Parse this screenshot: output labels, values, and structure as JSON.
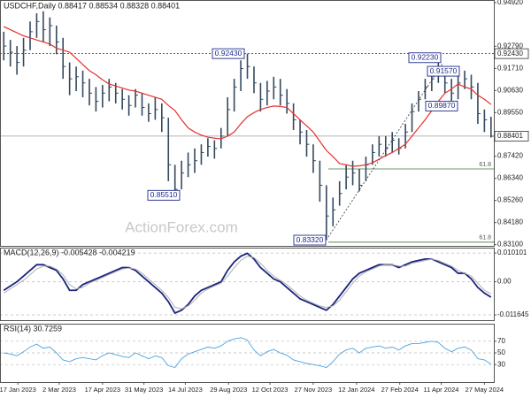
{
  "chart_data": [
    {
      "type": "ohlc",
      "title": "USDCHF,Daily  0.88417 0.88534 0.88328 0.88401",
      "watermark": "ActionForex.com",
      "xlim": [
        "2022-12-29",
        "2024-06-06"
      ],
      "ylim": [
        0.8304,
        0.9505
      ],
      "yticks": [
        {
          "value": 0.9492,
          "label": "0.94920"
        },
        {
          "value": 0.9279,
          "label": "0.92790"
        },
        {
          "value": 0.9171,
          "label": "0.91710"
        },
        {
          "value": 0.9063,
          "label": "0.90630"
        },
        {
          "value": 0.8955,
          "label": "0.89550"
        },
        {
          "value": 0.8742,
          "label": "0.87420"
        },
        {
          "value": 0.8634,
          "label": "0.86340"
        },
        {
          "value": 0.8526,
          "label": "0.85260"
        },
        {
          "value": 0.8418,
          "label": "0.84180"
        },
        {
          "value": 0.831,
          "label": "0.83100"
        }
      ],
      "x": [
        "2023-01-02",
        "2023-01-09",
        "2023-01-16",
        "2023-01-23",
        "2023-01-30",
        "2023-02-06",
        "2023-02-13",
        "2023-02-20",
        "2023-02-27",
        "2023-03-06",
        "2023-03-13",
        "2023-03-20",
        "2023-03-27",
        "2023-04-03",
        "2023-04-10",
        "2023-04-17",
        "2023-04-24",
        "2023-05-01",
        "2023-05-08",
        "2023-05-15",
        "2023-05-22",
        "2023-05-29",
        "2023-06-05",
        "2023-06-12",
        "2023-06-19",
        "2023-06-26",
        "2023-07-03",
        "2023-07-10",
        "2023-07-17",
        "2023-07-24",
        "2023-07-31",
        "2023-08-07",
        "2023-08-14",
        "2023-08-21",
        "2023-08-28",
        "2023-09-04",
        "2023-09-11",
        "2023-09-18",
        "2023-09-25",
        "2023-10-02",
        "2023-10-09",
        "2023-10-16",
        "2023-10-23",
        "2023-10-30",
        "2023-11-06",
        "2023-11-13",
        "2023-11-20",
        "2023-11-27",
        "2023-12-04",
        "2023-12-11",
        "2023-12-18",
        "2023-12-25",
        "2024-01-01",
        "2024-01-08",
        "2024-01-15",
        "2024-01-22",
        "2024-01-29",
        "2024-02-05",
        "2024-02-12",
        "2024-02-19",
        "2024-02-26",
        "2024-03-04",
        "2024-03-11",
        "2024-03-18",
        "2024-03-25",
        "2024-04-01",
        "2024-04-08",
        "2024-04-15",
        "2024-04-22",
        "2024-04-29",
        "2024-05-06",
        "2024-05-13",
        "2024-05-20",
        "2024-05-27",
        "2024-06-03"
      ],
      "high": [
        0.935,
        0.931,
        0.928,
        0.932,
        0.94,
        0.944,
        0.945,
        0.942,
        0.938,
        0.932,
        0.92,
        0.918,
        0.916,
        0.912,
        0.908,
        0.909,
        0.912,
        0.91,
        0.907,
        0.904,
        0.907,
        0.905,
        0.9,
        0.903,
        0.9,
        0.893,
        0.87,
        0.872,
        0.876,
        0.878,
        0.88,
        0.883,
        0.882,
        0.888,
        0.903,
        0.912,
        0.921,
        0.9243,
        0.918,
        0.91,
        0.911,
        0.913,
        0.912,
        0.907,
        0.9,
        0.892,
        0.887,
        0.88,
        0.872,
        0.86,
        0.854,
        0.862,
        0.87,
        0.872,
        0.868,
        0.874,
        0.88,
        0.884,
        0.884,
        0.886,
        0.883,
        0.89,
        0.9,
        0.906,
        0.912,
        0.916,
        0.9223,
        0.917,
        0.912,
        0.914,
        0.916,
        0.914,
        0.91,
        0.897,
        0.8935
      ],
      "low": [
        0.921,
        0.918,
        0.914,
        0.918,
        0.926,
        0.932,
        0.93,
        0.928,
        0.924,
        0.912,
        0.904,
        0.906,
        0.903,
        0.899,
        0.896,
        0.898,
        0.901,
        0.9,
        0.897,
        0.894,
        0.898,
        0.894,
        0.891,
        0.892,
        0.886,
        0.862,
        0.8551,
        0.858,
        0.864,
        0.866,
        0.87,
        0.874,
        0.873,
        0.878,
        0.884,
        0.896,
        0.906,
        0.912,
        0.905,
        0.896,
        0.899,
        0.902,
        0.899,
        0.895,
        0.887,
        0.88,
        0.874,
        0.866,
        0.852,
        0.8332,
        0.84,
        0.85,
        0.858,
        0.86,
        0.857,
        0.862,
        0.87,
        0.874,
        0.874,
        0.876,
        0.875,
        0.878,
        0.886,
        0.896,
        0.902,
        0.906,
        0.91,
        0.905,
        0.8987,
        0.902,
        0.907,
        0.902,
        0.89,
        0.886,
        0.8833
      ],
      "close": [
        0.928,
        0.925,
        0.92,
        0.926,
        0.935,
        0.94,
        0.936,
        0.938,
        0.93,
        0.918,
        0.912,
        0.913,
        0.91,
        0.905,
        0.901,
        0.905,
        0.908,
        0.905,
        0.902,
        0.899,
        0.904,
        0.898,
        0.895,
        0.897,
        0.893,
        0.87,
        0.858,
        0.866,
        0.87,
        0.872,
        0.876,
        0.879,
        0.878,
        0.884,
        0.897,
        0.908,
        0.917,
        0.918,
        0.91,
        0.902,
        0.906,
        0.908,
        0.904,
        0.9,
        0.892,
        0.886,
        0.88,
        0.872,
        0.86,
        0.845,
        0.848,
        0.856,
        0.864,
        0.866,
        0.86,
        0.87,
        0.876,
        0.88,
        0.878,
        0.882,
        0.878,
        0.886,
        0.896,
        0.902,
        0.908,
        0.912,
        0.915,
        0.91,
        0.905,
        0.91,
        0.912,
        0.908,
        0.895,
        0.892,
        0.88401
      ],
      "color": "#34495e",
      "series": [
        {
          "color": "#e53030",
          "values": [
            0.9375,
            0.936,
            0.9345,
            0.933,
            0.932,
            0.931,
            0.93,
            0.929,
            0.927,
            0.926,
            0.925,
            0.922,
            0.919,
            0.916,
            0.914,
            0.9115,
            0.9095,
            0.9085,
            0.9075,
            0.9065,
            0.906,
            0.905,
            0.904,
            0.903,
            0.902,
            0.899,
            0.8965,
            0.892,
            0.888,
            0.886,
            0.8845,
            0.8835,
            0.883,
            0.8827,
            0.884,
            0.886,
            0.89,
            0.8935,
            0.8955,
            0.897,
            0.898,
            0.8987,
            0.8985,
            0.898,
            0.895,
            0.892,
            0.889,
            0.886,
            0.8815,
            0.877,
            0.874,
            0.8706,
            0.87,
            0.8693,
            0.8695,
            0.87,
            0.871,
            0.8727,
            0.8745,
            0.876,
            0.878,
            0.88,
            0.884,
            0.888,
            0.892,
            0.8965,
            0.901,
            0.905,
            0.907,
            0.9095,
            0.908,
            0.907,
            0.904,
            0.902,
            0.8995
          ]
        }
      ],
      "annotations": [
        {
          "label": "0.92430",
          "value": 0.9243
        },
        {
          "label": "0.85510",
          "value": 0.8551
        },
        {
          "label": "0.83320",
          "value": 0.8332
        },
        {
          "label": "0.92230",
          "value": 0.9223
        },
        {
          "label": "0.91570",
          "value": 0.9157
        },
        {
          "label": "0.89870",
          "value": 0.8987
        }
      ],
      "levels": [
        {
          "label": "61.8",
          "value": 0.868
        },
        {
          "label": "61.8",
          "value": 0.8322
        }
      ],
      "price_tags": [
        {
          "label": "0.92430",
          "value": 0.9243
        },
        {
          "label": "0.88401",
          "value": 0.88401
        }
      ]
    },
    {
      "type": "line",
      "title": "MACD(12,26,9) -0.005428 -0.004219",
      "ylim": [
        -0.0135,
        0.012
      ],
      "yticks": [
        0.010101,
        {
          "value": 0,
          "label": "0.00"
        },
        -0.011645
      ],
      "series": [
        {
          "color": "#1a237e",
          "values": [
            -0.003,
            -0.0015,
            0,
            0.002,
            0.004,
            0.006,
            0.006,
            0.005,
            0.004,
            0.001,
            -0.003,
            -0.003,
            -0.001,
            0,
            0.001,
            0.002,
            0.003,
            0.004,
            0.005,
            0.005,
            0.004,
            0.002,
            0,
            -0.002,
            -0.004,
            -0.007,
            -0.011,
            -0.01,
            -0.008,
            -0.005,
            -0.003,
            -0.002,
            -0.001,
            0,
            0.004,
            0.007,
            0.009,
            0.01,
            0.008,
            0.005,
            0.003,
            0.001,
            0,
            -0.002,
            -0.004,
            -0.006,
            -0.007,
            -0.008,
            -0.009,
            -0.01,
            -0.008,
            -0.005,
            -0.002,
            0.001,
            0.003,
            0.004,
            0.005,
            0.006,
            0.006,
            0.006,
            0.005,
            0.006,
            0.007,
            0.0075,
            0.008,
            0.008,
            0.007,
            0.006,
            0.005,
            0.003,
            0.003,
            0.001,
            -0.002,
            -0.004,
            -0.005428
          ]
        },
        {
          "color": "#b0b0b0",
          "values": [
            -0.004,
            -0.0025,
            -0.001,
            0.0005,
            0.0025,
            0.0045,
            0.0055,
            0.0055,
            0.0045,
            0.0025,
            -0.001,
            -0.0025,
            -0.002,
            -0.0005,
            0.0005,
            0.0015,
            0.0025,
            0.0035,
            0.0045,
            0.0048,
            0.0045,
            0.003,
            0.001,
            -0.001,
            -0.003,
            -0.0055,
            -0.009,
            -0.0095,
            -0.0085,
            -0.0065,
            -0.004,
            -0.0025,
            -0.0015,
            -0.0005,
            0.002,
            0.005,
            0.0075,
            0.009,
            0.0085,
            0.0065,
            0.004,
            0.002,
            0.0005,
            -0.001,
            -0.003,
            -0.005,
            -0.0065,
            -0.0075,
            -0.0085,
            -0.009,
            -0.0085,
            -0.0065,
            -0.0035,
            -0.0005,
            0.002,
            0.0035,
            0.0045,
            0.0055,
            0.006,
            0.006,
            0.0055,
            0.0055,
            0.0065,
            0.007,
            0.0075,
            0.008,
            0.0075,
            0.0065,
            0.0055,
            0.004,
            0.003,
            0.002,
            -0.0005,
            -0.003,
            -0.004219
          ]
        }
      ]
    },
    {
      "type": "line",
      "title": "RSI(14) 30.7259",
      "ylim": [
        0,
        100
      ],
      "yticks": [
        70,
        50,
        30
      ],
      "xticks": [
        {
          "value": "2023-01-17",
          "label": "17 Jan 2023"
        },
        {
          "value": "2023-03-02",
          "label": "2 Mar 2023"
        },
        {
          "value": "2023-04-17",
          "label": "17 Apr 2023"
        },
        {
          "value": "2023-05-31",
          "label": "31 May 2023"
        },
        {
          "value": "2023-07-14",
          "label": "14 Jul 2023"
        },
        {
          "value": "2023-08-29",
          "label": "29 Aug 2023"
        },
        {
          "value": "2023-10-12",
          "label": "12 Oct 2023"
        },
        {
          "value": "2023-11-27",
          "label": "27 Nov 2023"
        },
        {
          "value": "2024-01-12",
          "label": "12 Jan 2024"
        },
        {
          "value": "2024-02-27",
          "label": "27 Feb 2024"
        },
        {
          "value": "2024-04-11",
          "label": "11 Apr 2024"
        },
        {
          "value": "2024-05-27",
          "label": "27 May 2024"
        }
      ],
      "series": [
        {
          "color": "#4aa3df",
          "values": [
            50,
            48,
            45,
            52,
            60,
            65,
            58,
            60,
            50,
            38,
            35,
            40,
            42,
            40,
            38,
            45,
            50,
            47,
            44,
            42,
            50,
            45,
            40,
            45,
            42,
            28,
            25,
            40,
            48,
            52,
            56,
            60,
            58,
            62,
            70,
            74,
            76,
            72,
            55,
            45,
            52,
            56,
            50,
            46,
            38,
            35,
            32,
            30,
            28,
            25,
            35,
            48,
            55,
            58,
            50,
            58,
            60,
            62,
            58,
            60,
            55,
            62,
            66,
            66,
            68,
            70,
            68,
            58,
            52,
            58,
            60,
            55,
            40,
            38,
            30.7259
          ]
        }
      ]
    }
  ]
}
